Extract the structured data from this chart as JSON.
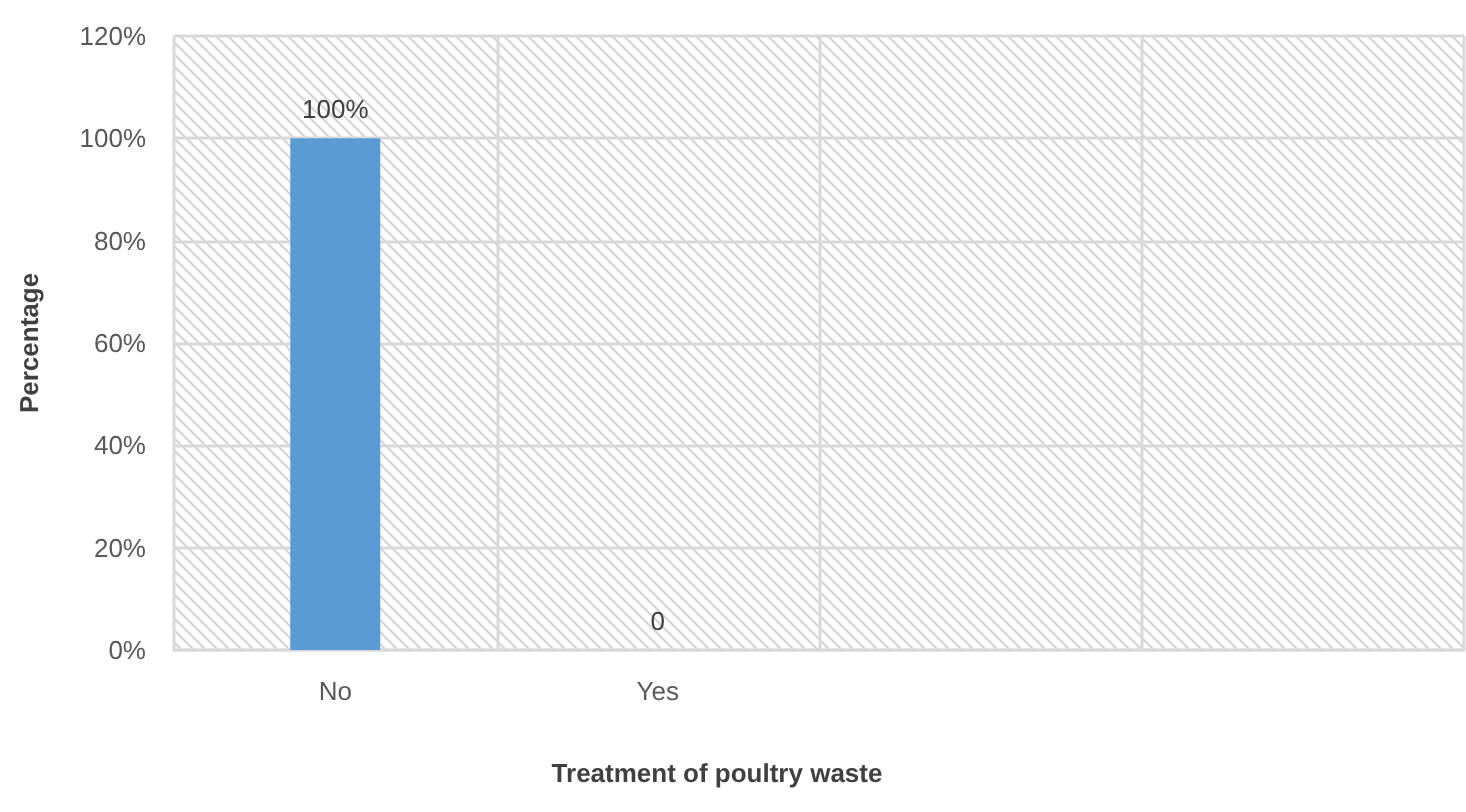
{
  "chart_data": {
    "type": "bar",
    "xlabel": "Treatment of poultry waste",
    "ylabel": "Percentage",
    "categories": [
      "No",
      "Yes",
      null,
      null
    ],
    "values": [
      100,
      0,
      null,
      null
    ],
    "value_labels": [
      "100%",
      "0",
      null,
      null
    ],
    "color": "#5b9bd5",
    "ylim": [
      0,
      120
    ],
    "yticks": [
      {
        "value": 0,
        "label": "0%"
      },
      {
        "value": 20,
        "label": "20%"
      },
      {
        "value": 40,
        "label": "40%"
      },
      {
        "value": 60,
        "label": "60%"
      },
      {
        "value": 80,
        "label": "80%"
      },
      {
        "value": 100,
        "label": "100%"
      },
      {
        "value": 120,
        "label": "120%"
      }
    ],
    "grid": true
  }
}
